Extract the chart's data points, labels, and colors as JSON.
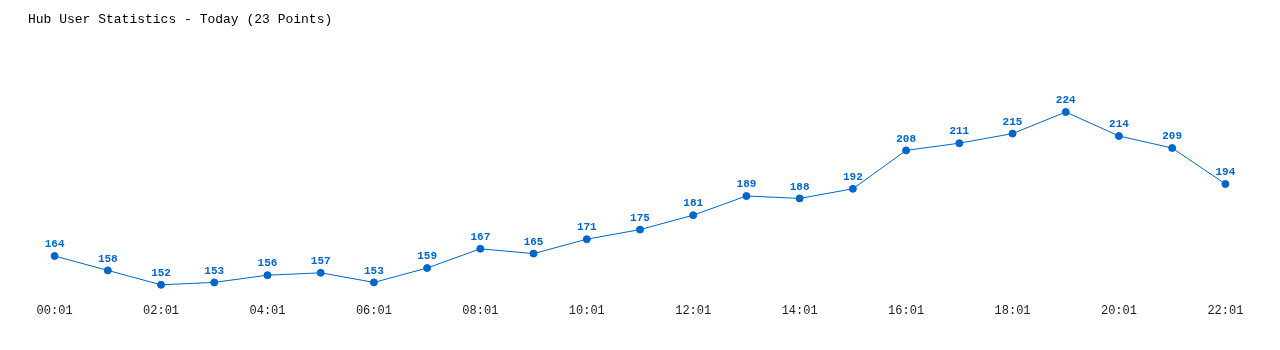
{
  "chart_data": {
    "type": "line",
    "title": "Hub User Statistics - Today (23 Points)",
    "categories": [
      "00:01",
      null,
      "02:01",
      null,
      "04:01",
      null,
      "06:01",
      null,
      "08:01",
      null,
      "10:01",
      null,
      "12:01",
      null,
      "14:01",
      null,
      "16:01",
      null,
      "18:01",
      null,
      "20:01",
      null,
      "22:01"
    ],
    "series": [
      {
        "color": "#0066cc",
        "values": [
          164,
          158,
          152,
          153,
          156,
          157,
          153,
          159,
          167,
          165,
          171,
          175,
          181,
          189,
          188,
          192,
          208,
          211,
          215,
          224,
          214,
          209,
          194
        ]
      }
    ],
    "data_labels": true,
    "marker": "circle",
    "line_style": "solid",
    "grid": false,
    "legend": false,
    "tick_labels": "x"
  }
}
